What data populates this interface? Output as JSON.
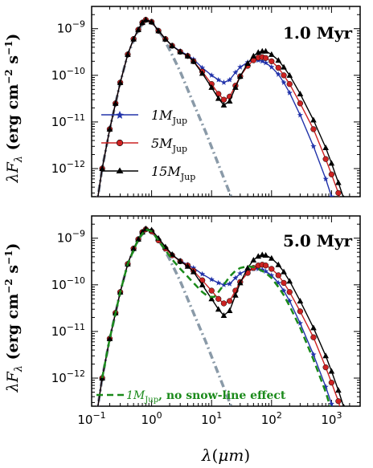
{
  "chart_data": [
    {
      "type": "line",
      "title": "1.0 Myr",
      "xlabel": "λ(μm)",
      "ylabel": "λF_λ (erg cm⁻² s⁻¹)",
      "xscale": "log",
      "yscale": "log",
      "xlim": [
        0.1,
        3000
      ],
      "ylim": [
        2.5e-13,
        3e-09
      ],
      "legend_position": "left-middle",
      "series": [
        {
          "name": "1M_Jup",
          "color": "#2233aa",
          "marker": "star",
          "x": [
            0.12,
            0.15,
            0.2,
            0.25,
            0.3,
            0.4,
            0.5,
            0.6,
            0.7,
            0.8,
            1.0,
            1.3,
            1.7,
            2.2,
            3,
            4,
            5,
            7,
            10,
            13,
            16,
            20,
            25,
            30,
            40,
            50,
            60,
            70,
            80,
            100,
            130,
            160,
            200,
            300,
            500,
            800,
            1000,
            1300
          ],
          "y": [
            1.5e-13,
            1e-12,
            7e-12,
            2.5e-11,
            7e-11,
            2.8e-10,
            6e-10,
            9.5e-10,
            1.35e-09,
            1.55e-09,
            1.4e-09,
            9e-10,
            6e-10,
            4.3e-10,
            3.3e-10,
            2.7e-10,
            2.2e-10,
            1.45e-10,
            1e-10,
            8e-11,
            7e-11,
            8e-11,
            1.15e-10,
            1.5e-10,
            1.9e-10,
            2.1e-10,
            2.1e-10,
            2e-10,
            1.85e-10,
            1.5e-10,
            1.05e-10,
            7e-11,
            4.2e-11,
            1.4e-11,
            3e-12,
            6e-13,
            2.5e-13,
            1e-13
          ]
        },
        {
          "name": "5M_Jup",
          "color": "#cc2222",
          "marker": "circle",
          "x": [
            0.12,
            0.15,
            0.2,
            0.25,
            0.3,
            0.4,
            0.5,
            0.6,
            0.7,
            0.8,
            1.0,
            1.3,
            1.7,
            2.2,
            3,
            4,
            5,
            7,
            10,
            13,
            16,
            20,
            25,
            30,
            40,
            50,
            60,
            70,
            80,
            100,
            130,
            160,
            200,
            300,
            500,
            800,
            1000,
            1300,
            1600
          ],
          "y": [
            1.5e-13,
            1e-12,
            7e-12,
            2.5e-11,
            7e-11,
            2.8e-10,
            6e-10,
            9.5e-10,
            1.35e-09,
            1.55e-09,
            1.4e-09,
            9e-10,
            6e-10,
            4.3e-10,
            3.2e-10,
            2.6e-10,
            2e-10,
            1.2e-10,
            6.5e-11,
            4e-11,
            3e-11,
            3.5e-11,
            6e-11,
            9.5e-11,
            1.6e-10,
            2.1e-10,
            2.4e-10,
            2.45e-10,
            2.35e-10,
            2e-10,
            1.45e-10,
            1e-10,
            6.5e-11,
            2.5e-11,
            7e-12,
            1.6e-12,
            7.5e-13,
            3e-13,
            1.2e-13
          ]
        },
        {
          "name": "15M_Jup",
          "color": "#000000",
          "marker": "triangle",
          "x": [
            0.12,
            0.15,
            0.2,
            0.25,
            0.3,
            0.4,
            0.5,
            0.6,
            0.7,
            0.8,
            1.0,
            1.3,
            1.7,
            2.2,
            3,
            4,
            5,
            7,
            10,
            13,
            16,
            20,
            25,
            30,
            40,
            50,
            60,
            70,
            80,
            100,
            130,
            160,
            200,
            300,
            500,
            800,
            1000,
            1300,
            1600,
            1900
          ],
          "y": [
            1.5e-13,
            1e-12,
            7e-12,
            2.5e-11,
            7e-11,
            2.8e-10,
            6e-10,
            9.5e-10,
            1.35e-09,
            1.55e-09,
            1.4e-09,
            9e-10,
            6e-10,
            4.3e-10,
            3.2e-10,
            2.6e-10,
            2e-10,
            1.1e-10,
            5.5e-11,
            3.2e-11,
            2.3e-11,
            2.8e-11,
            5.5e-11,
            9.5e-11,
            1.8e-10,
            2.6e-10,
            3.1e-10,
            3.3e-10,
            3.3e-10,
            2.8e-10,
            2.1e-10,
            1.5e-10,
            1e-10,
            4e-11,
            1.1e-11,
            2.8e-12,
            1.3e-12,
            5e-13,
            2.3e-13,
            1.2e-13
          ]
        },
        {
          "name": "",
          "color": "#8090a0",
          "style": "dash-dot",
          "x": [
            0.12,
            0.15,
            0.2,
            0.3,
            0.4,
            0.6,
            0.8,
            1.0,
            1.5,
            2,
            3,
            5,
            8,
            12,
            20,
            30
          ],
          "y": [
            1.5e-13,
            1e-12,
            7e-12,
            7e-11,
            2.8e-10,
            9.5e-10,
            1.55e-09,
            1.4e-09,
            7e-10,
            3.5e-10,
            1.2e-10,
            2.5e-11,
            6e-12,
            1.6e-12,
            3e-13,
            8e-14
          ]
        }
      ]
    },
    {
      "type": "line",
      "title": "5.0 Myr",
      "xlabel": "λ(μm)",
      "ylabel": "λF_λ (erg cm⁻² s⁻¹)",
      "xscale": "log",
      "yscale": "log",
      "xlim": [
        0.1,
        3000
      ],
      "ylim": [
        2.5e-13,
        3e-09
      ],
      "annotation": "1M_Jup, no snow-line effect",
      "series": [
        {
          "name": "1M_Jup",
          "color": "#2233aa",
          "marker": "star",
          "x": [
            0.12,
            0.15,
            0.2,
            0.25,
            0.3,
            0.4,
            0.5,
            0.6,
            0.7,
            0.8,
            1.0,
            1.3,
            1.7,
            2.2,
            3,
            4,
            5,
            7,
            10,
            13,
            16,
            20,
            25,
            30,
            40,
            50,
            60,
            70,
            80,
            100,
            130,
            160,
            200,
            300,
            500,
            800,
            1000,
            1300
          ],
          "y": [
            1.5e-13,
            1e-12,
            7e-12,
            2.5e-11,
            7e-11,
            2.8e-10,
            6e-10,
            9.5e-10,
            1.35e-09,
            1.55e-09,
            1.4e-09,
            9e-10,
            6e-10,
            4.3e-10,
            3.3e-10,
            2.7e-10,
            2.3e-10,
            1.7e-10,
            1.3e-10,
            1.1e-10,
            1e-10,
            1.05e-10,
            1.4e-10,
            1.75e-10,
            2.1e-10,
            2.2e-10,
            2.2e-10,
            2.1e-10,
            1.95e-10,
            1.6e-10,
            1.1e-10,
            7.5e-11,
            4.5e-11,
            1.5e-11,
            3.2e-12,
            6.5e-13,
            2.8e-13,
            1.1e-13
          ]
        },
        {
          "name": "5M_Jup",
          "color": "#cc2222",
          "marker": "circle",
          "x": [
            0.12,
            0.15,
            0.2,
            0.25,
            0.3,
            0.4,
            0.5,
            0.6,
            0.7,
            0.8,
            1.0,
            1.3,
            1.7,
            2.2,
            3,
            4,
            5,
            7,
            10,
            13,
            16,
            20,
            25,
            30,
            40,
            50,
            60,
            70,
            80,
            100,
            130,
            160,
            200,
            300,
            500,
            800,
            1000,
            1300,
            1600
          ],
          "y": [
            1.5e-13,
            1e-12,
            7e-12,
            2.5e-11,
            7e-11,
            2.8e-10,
            6e-10,
            9.5e-10,
            1.35e-09,
            1.55e-09,
            1.4e-09,
            9e-10,
            6e-10,
            4.3e-10,
            3.2e-10,
            2.6e-10,
            2e-10,
            1.25e-10,
            7.5e-11,
            5e-11,
            4e-11,
            4.5e-11,
            7.5e-11,
            1.15e-10,
            1.8e-10,
            2.3e-10,
            2.6e-10,
            2.7e-10,
            2.6e-10,
            2.2e-10,
            1.6e-10,
            1.1e-10,
            7e-11,
            2.7e-11,
            7.5e-12,
            1.7e-12,
            8e-13,
            3.2e-13,
            1.3e-13
          ]
        },
        {
          "name": "15M_Jup",
          "color": "#000000",
          "marker": "triangle",
          "x": [
            0.12,
            0.15,
            0.2,
            0.25,
            0.3,
            0.4,
            0.5,
            0.6,
            0.7,
            0.8,
            1.0,
            1.3,
            1.7,
            2.2,
            3,
            4,
            5,
            7,
            10,
            13,
            16,
            20,
            25,
            30,
            40,
            50,
            60,
            70,
            80,
            100,
            130,
            160,
            200,
            300,
            500,
            800,
            1000,
            1300,
            1600,
            1900
          ],
          "y": [
            1.5e-13,
            1e-12,
            7e-12,
            2.5e-11,
            7e-11,
            2.8e-10,
            6e-10,
            9.5e-10,
            1.35e-09,
            1.6e-09,
            1.5e-09,
            1e-09,
            6.5e-10,
            4.5e-10,
            3.2e-10,
            2.5e-10,
            1.9e-10,
            1e-10,
            5e-11,
            3e-11,
            2.2e-11,
            2.8e-11,
            6e-11,
            1.1e-10,
            2.3e-10,
            3.4e-10,
            4.1e-10,
            4.4e-10,
            4.3e-10,
            3.7e-10,
            2.7e-10,
            1.9e-10,
            1.2e-10,
            4.5e-11,
            1.2e-11,
            3e-12,
            1.4e-12,
            5.5e-13,
            2.4e-13,
            1.2e-13
          ]
        },
        {
          "name": "1M_Jup, no snow-line effect",
          "color": "#1a8a1a",
          "style": "dash",
          "x": [
            0.15,
            0.2,
            0.3,
            0.4,
            0.6,
            0.8,
            1.0,
            1.3,
            1.7,
            2.2,
            3,
            4,
            5,
            7,
            9,
            11,
            13,
            16,
            20,
            25,
            30,
            40,
            50,
            60,
            80,
            100,
            130,
            160,
            200,
            300,
            500,
            800,
            1000
          ],
          "y": [
            1e-12,
            7e-12,
            7e-11,
            2.8e-10,
            9.5e-10,
            1.55e-09,
            1.4e-09,
            9e-10,
            5.5e-10,
            3.5e-10,
            2.2e-10,
            1.5e-10,
            1.1e-10,
            7e-11,
            5.5e-11,
            5.5e-11,
            7e-11,
            1e-10,
            1.5e-10,
            2e-10,
            2.3e-10,
            2.5e-10,
            2.4e-10,
            2.2e-10,
            1.8e-10,
            1.4e-10,
            9e-11,
            6e-11,
            3.5e-11,
            1.2e-11,
            2.5e-12,
            5e-13,
            2e-13
          ]
        },
        {
          "name": "",
          "color": "#8090a0",
          "style": "dash-dot",
          "x": [
            0.12,
            0.15,
            0.2,
            0.3,
            0.4,
            0.6,
            0.8,
            1.0,
            1.5,
            2,
            3,
            5,
            8,
            12,
            20,
            30
          ],
          "y": [
            1.5e-13,
            1e-12,
            7e-12,
            7e-11,
            2.8e-10,
            9.5e-10,
            1.55e-09,
            1.4e-09,
            7e-10,
            3.5e-10,
            1.2e-10,
            2.5e-11,
            6e-12,
            1.6e-12,
            3e-13,
            8e-14
          ]
        }
      ]
    }
  ],
  "labels": {
    "top_title": "1.0 Myr",
    "bottom_title": "5.0 Myr",
    "legend_1": "1M",
    "legend_1_sub": "Jup",
    "legend_5": "5M",
    "legend_5_sub": "Jup",
    "legend_15": "15M",
    "legend_15_sub": "Jup",
    "green_note_mass": "1M",
    "green_note_sub": "Jup",
    "green_note_text": ", no snow-line effect"
  }
}
